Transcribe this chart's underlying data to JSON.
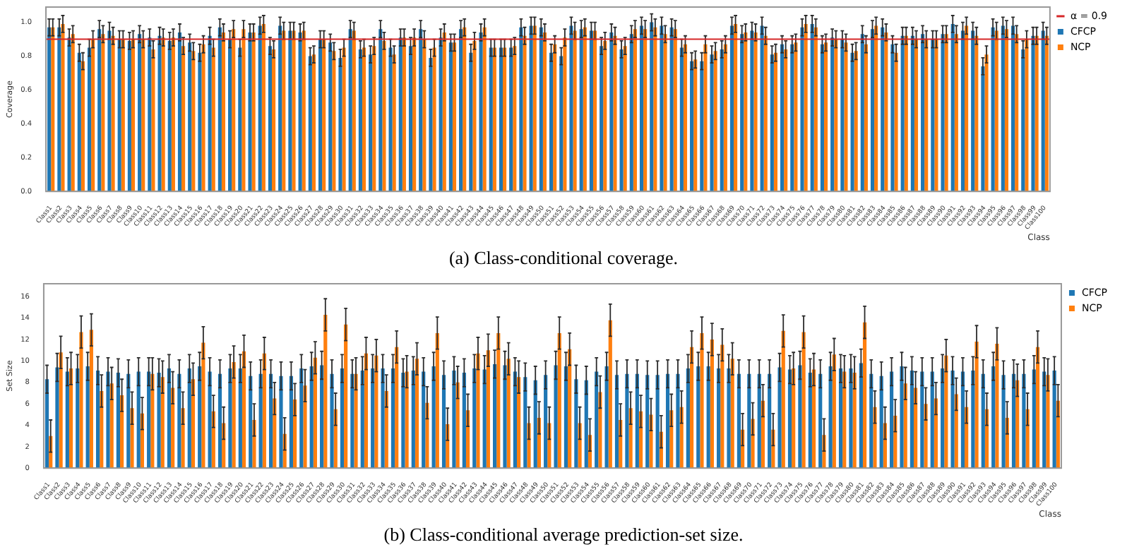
{
  "chart_data": [
    {
      "type": "bar",
      "xlabel": "Class",
      "ylabel": "Coverage",
      "legend": "top right",
      "grid": false,
      "categories": [
        "Class1",
        "Class2",
        "Class3",
        "Class4",
        "Class5",
        "Class6",
        "Class7",
        "Class8",
        "Class9",
        "Class10",
        "Class11",
        "Class12",
        "Class13",
        "Class14",
        "Class15",
        "Class16",
        "Class17",
        "Class18",
        "Class19",
        "Class20",
        "Class21",
        "Class22",
        "Class23",
        "Class24",
        "Class25",
        "Class26",
        "Class27",
        "Class28",
        "Class29",
        "Class30",
        "Class31",
        "Class32",
        "Class33",
        "Class34",
        "Class35",
        "Class36",
        "Class37",
        "Class38",
        "Class39",
        "Class40",
        "Class41",
        "Class42",
        "Class43",
        "Class44",
        "Class45",
        "Class46",
        "Class47",
        "Class48",
        "Class49",
        "Class50",
        "Class51",
        "Class52",
        "Class53",
        "Class54",
        "Class55",
        "Class56",
        "Class57",
        "Class58",
        "Class59",
        "Class60",
        "Class61",
        "Class62",
        "Class63",
        "Class64",
        "Class65",
        "Class66",
        "Class67",
        "Class68",
        "Class69",
        "Class70",
        "Class71",
        "Class72",
        "Class73",
        "Class74",
        "Class75",
        "Class76",
        "Class77",
        "Class78",
        "Class79",
        "Class80",
        "Class81",
        "Class82",
        "Class83",
        "Class84",
        "Class85",
        "Class86",
        "Class87",
        "Class88",
        "Class89",
        "Class90",
        "Class91",
        "Class92",
        "Class93",
        "Class94",
        "Class95",
        "Class96",
        "Class97",
        "Class98",
        "Class99",
        "Class100"
      ],
      "series": [
        {
          "name": "CFCP",
          "color": "#1f77b4",
          "values": [
            0.97,
            0.97,
            0.91,
            0.82,
            0.85,
            0.96,
            0.95,
            0.9,
            0.89,
            0.93,
            0.91,
            0.92,
            0.89,
            0.94,
            0.88,
            0.82,
            0.92,
            0.97,
            0.9,
            0.85,
            0.94,
            0.98,
            0.86,
            0.98,
            0.95,
            0.94,
            0.8,
            0.9,
            0.88,
            0.79,
            0.96,
            0.84,
            0.81,
            0.96,
            0.85,
            0.91,
            0.86,
            0.96,
            0.79,
            0.91,
            0.88,
            0.96,
            0.82,
            0.94,
            0.85,
            0.85,
            0.85,
            0.97,
            0.98,
            0.97,
            0.82,
            0.8,
            0.98,
            0.96,
            0.95,
            0.86,
            0.94,
            0.84,
            0.93,
            0.98,
            1.0,
            0.98,
            0.97,
            0.85,
            0.77,
            0.77,
            0.81,
            0.84,
            0.98,
            0.93,
            0.95,
            0.98,
            0.81,
            0.87,
            0.87,
            0.97,
            0.99,
            0.87,
            0.91,
            0.9,
            0.82,
            0.93,
            0.96,
            0.97,
            0.87,
            0.92,
            0.92,
            0.93,
            0.9,
            0.93,
            0.99,
            0.95,
            0.95,
            0.74,
            0.97,
            0.98,
            0.98,
            0.84,
            0.92,
            0.95
          ],
          "errors": [
            0.05,
            0.05,
            0.05,
            0.05,
            0.05,
            0.05,
            0.05,
            0.05,
            0.05,
            0.05,
            0.05,
            0.05,
            0.05,
            0.05,
            0.05,
            0.05,
            0.05,
            0.05,
            0.05,
            0.05,
            0.05,
            0.05,
            0.05,
            0.05,
            0.05,
            0.05,
            0.05,
            0.05,
            0.05,
            0.05,
            0.05,
            0.05,
            0.05,
            0.05,
            0.05,
            0.05,
            0.05,
            0.05,
            0.05,
            0.05,
            0.05,
            0.05,
            0.05,
            0.05,
            0.05,
            0.05,
            0.05,
            0.05,
            0.05,
            0.05,
            0.05,
            0.05,
            0.05,
            0.05,
            0.05,
            0.05,
            0.05,
            0.05,
            0.05,
            0.05,
            0.05,
            0.05,
            0.05,
            0.05,
            0.05,
            0.05,
            0.05,
            0.05,
            0.05,
            0.05,
            0.05,
            0.05,
            0.05,
            0.05,
            0.05,
            0.05,
            0.05,
            0.05,
            0.05,
            0.05,
            0.05,
            0.05,
            0.05,
            0.05,
            0.05,
            0.05,
            0.05,
            0.05,
            0.05,
            0.05,
            0.05,
            0.05,
            0.05,
            0.05,
            0.05,
            0.05,
            0.05,
            0.05,
            0.05,
            0.05
          ]
        },
        {
          "name": "NCP",
          "color": "#ff7f0e",
          "values": [
            0.97,
            0.99,
            0.93,
            0.77,
            0.9,
            0.93,
            0.92,
            0.9,
            0.9,
            0.9,
            0.84,
            0.91,
            0.91,
            0.86,
            0.83,
            0.87,
            0.85,
            0.94,
            0.96,
            0.96,
            0.94,
            0.99,
            0.84,
            0.95,
            0.95,
            0.95,
            0.81,
            0.9,
            0.83,
            0.85,
            0.95,
            0.85,
            0.86,
            0.89,
            0.81,
            0.91,
            0.91,
            0.9,
            0.85,
            0.94,
            0.88,
            0.97,
            0.89,
            0.97,
            0.85,
            0.85,
            0.86,
            0.92,
            0.98,
            0.94,
            0.87,
            0.91,
            0.95,
            0.97,
            0.95,
            0.89,
            0.92,
            0.86,
            0.96,
            0.96,
            0.97,
            0.93,
            0.96,
            0.87,
            0.78,
            0.87,
            0.83,
            0.87,
            0.99,
            0.94,
            0.94,
            0.92,
            0.82,
            0.84,
            0.88,
            0.99,
            0.97,
            0.88,
            0.9,
            0.88,
            0.83,
            0.87,
            0.98,
            0.94,
            0.82,
            0.92,
            0.9,
            0.9,
            0.9,
            0.93,
            0.93,
            0.98,
            0.92,
            0.81,
            0.95,
            0.96,
            0.93,
            0.9,
            0.92,
            0.92
          ],
          "errors": [
            0.05,
            0.05,
            0.05,
            0.05,
            0.05,
            0.05,
            0.05,
            0.05,
            0.05,
            0.05,
            0.05,
            0.05,
            0.05,
            0.05,
            0.05,
            0.05,
            0.05,
            0.05,
            0.05,
            0.05,
            0.05,
            0.05,
            0.05,
            0.05,
            0.05,
            0.05,
            0.05,
            0.05,
            0.05,
            0.05,
            0.05,
            0.05,
            0.05,
            0.05,
            0.05,
            0.05,
            0.05,
            0.05,
            0.05,
            0.05,
            0.05,
            0.05,
            0.05,
            0.05,
            0.05,
            0.05,
            0.05,
            0.05,
            0.05,
            0.05,
            0.05,
            0.05,
            0.05,
            0.05,
            0.05,
            0.05,
            0.05,
            0.05,
            0.05,
            0.05,
            0.05,
            0.05,
            0.05,
            0.05,
            0.05,
            0.05,
            0.05,
            0.05,
            0.05,
            0.05,
            0.05,
            0.05,
            0.05,
            0.05,
            0.05,
            0.05,
            0.05,
            0.05,
            0.05,
            0.05,
            0.05,
            0.05,
            0.05,
            0.05,
            0.05,
            0.05,
            0.05,
            0.05,
            0.05,
            0.05,
            0.05,
            0.05,
            0.05,
            0.05,
            0.05,
            0.05,
            0.05,
            0.05,
            0.05,
            0.05
          ]
        }
      ],
      "ylim": [
        0,
        1.09
      ],
      "yticks": [
        {
          "value": 0,
          "label": "0.0"
        },
        {
          "value": 0.2,
          "label": "0.2"
        },
        {
          "value": 0.4,
          "label": "0.4"
        },
        {
          "value": 0.6,
          "label": "0.6"
        },
        {
          "value": 0.8,
          "label": "0.8"
        },
        {
          "value": 1,
          "label": "1.0"
        }
      ],
      "ref_lines": [
        {
          "axis": "y",
          "value": 0.9,
          "label": "α = 0.9",
          "color": "#d62728"
        }
      ],
      "annotations": [
        "(a) Class-conditional coverage."
      ]
    },
    {
      "type": "bar",
      "xlabel": "Class",
      "ylabel": "Set Size",
      "legend": "top right",
      "grid": false,
      "categories": [
        "Class1",
        "Class2",
        "Class3",
        "Class4",
        "Class5",
        "Class6",
        "Class7",
        "Class8",
        "Class9",
        "Class10",
        "Class11",
        "Class12",
        "Class13",
        "Class14",
        "Class15",
        "Class16",
        "Class17",
        "Class18",
        "Class19",
        "Class20",
        "Class21",
        "Class22",
        "Class23",
        "Class24",
        "Class25",
        "Class26",
        "Class27",
        "Class28",
        "Class29",
        "Class30",
        "Class31",
        "Class32",
        "Class33",
        "Class34",
        "Class35",
        "Class36",
        "Class37",
        "Class38",
        "Class39",
        "Class40",
        "Class41",
        "Class42",
        "Class43",
        "Class44",
        "Class45",
        "Class46",
        "Class47",
        "Class48",
        "Class49",
        "Class50",
        "Class51",
        "Class52",
        "Class53",
        "Class54",
        "Class55",
        "Class56",
        "Class57",
        "Class58",
        "Class59",
        "Class60",
        "Class61",
        "Class62",
        "Class63",
        "Class64",
        "Class65",
        "Class66",
        "Class67",
        "Class68",
        "Class69",
        "Class70",
        "Class71",
        "Class72",
        "Class73",
        "Class74",
        "Class75",
        "Class76",
        "Class77",
        "Class78",
        "Class79",
        "Class80",
        "Class81",
        "Class82",
        "Class83",
        "Class84",
        "Class85",
        "Class86",
        "Class87",
        "Class88",
        "Class89",
        "Class90",
        "Class91",
        "Class92",
        "Class93",
        "Class94",
        "Class95",
        "Class96",
        "Class97",
        "Class98",
        "Class99",
        "Class100"
      ],
      "series": [
        {
          "name": "CFCP",
          "color": "#1f77b4",
          "values": [
            8.3,
            9.4,
            9.0,
            9.3,
            9.5,
            9.1,
            9.0,
            8.9,
            8.8,
            9.0,
            9.0,
            8.9,
            9.3,
            8.8,
            9.3,
            9.5,
            9.0,
            8.8,
            9.3,
            9.3,
            8.6,
            8.8,
            8.8,
            8.6,
            8.6,
            9.3,
            9.5,
            9.6,
            8.8,
            9.3,
            8.8,
            9.1,
            9.3,
            9.3,
            9.3,
            8.9,
            9.1,
            9.0,
            9.5,
            8.7,
            9.1,
            8.9,
            9.3,
            9.2,
            9.7,
            9.6,
            9.0,
            8.5,
            8.2,
            8.7,
            9.6,
            9.5,
            8.3,
            8.2,
            9.0,
            9.5,
            8.7,
            8.8,
            8.8,
            8.7,
            8.7,
            8.8,
            8.8,
            9.3,
            9.5,
            9.5,
            9.3,
            9.3,
            8.8,
            8.8,
            8.8,
            8.8,
            9.4,
            9.2,
            9.6,
            8.9,
            8.8,
            9.5,
            9.3,
            9.3,
            9.8,
            8.8,
            8.6,
            9.0,
            9.5,
            9.1,
            9.0,
            9.0,
            9.3,
            9.1,
            9.0,
            9.1,
            8.8,
            9.5,
            8.7,
            8.8,
            8.8,
            9.2,
            9.0,
            9.1
          ],
          "errors": [
            1.3,
            1.3,
            1.3,
            1.3,
            1.3,
            1.3,
            1.3,
            1.3,
            1.3,
            1.3,
            1.3,
            1.3,
            1.3,
            1.3,
            1.3,
            1.3,
            1.3,
            1.3,
            1.3,
            1.3,
            1.3,
            1.3,
            1.3,
            1.3,
            1.3,
            1.3,
            1.3,
            1.3,
            1.3,
            1.3,
            1.3,
            1.3,
            1.3,
            1.3,
            1.3,
            1.3,
            1.3,
            1.3,
            1.3,
            1.3,
            1.3,
            1.3,
            1.3,
            1.3,
            1.3,
            1.3,
            1.3,
            1.3,
            1.3,
            1.3,
            1.3,
            1.3,
            1.3,
            1.3,
            1.3,
            1.3,
            1.3,
            1.3,
            1.3,
            1.3,
            1.3,
            1.3,
            1.3,
            1.3,
            1.3,
            1.3,
            1.3,
            1.3,
            1.3,
            1.3,
            1.3,
            1.3,
            1.3,
            1.3,
            1.3,
            1.3,
            1.3,
            1.3,
            1.3,
            1.3,
            1.3,
            1.3,
            1.3,
            1.3,
            1.3,
            1.3,
            1.3,
            1.3,
            1.3,
            1.3,
            1.3,
            1.3,
            1.3,
            1.3,
            1.3,
            1.3,
            1.3,
            1.3,
            1.3,
            1.3
          ]
        },
        {
          "name": "NCP",
          "color": "#ff7f0e",
          "values": [
            3.0,
            10.8,
            9.3,
            12.7,
            12.9,
            7.2,
            7.9,
            6.8,
            5.6,
            5.1,
            8.8,
            8.5,
            7.5,
            5.6,
            8.3,
            11.7,
            5.3,
            4.2,
            9.9,
            10.9,
            4.5,
            10.7,
            6.5,
            3.2,
            6.4,
            7.7,
            10.3,
            14.3,
            5.5,
            13.4,
            8.8,
            10.7,
            10.5,
            7.2,
            11.3,
            9.0,
            10.2,
            6.1,
            12.6,
            4.1,
            8.0,
            5.4,
            10.7,
            11.0,
            12.6,
            10.2,
            8.5,
            4.2,
            4.7,
            4.2,
            12.6,
            11.1,
            4.2,
            3.1,
            7.1,
            13.8,
            4.5,
            5.6,
            5.3,
            5.0,
            3.4,
            5.4,
            5.7,
            11.3,
            12.6,
            12.0,
            11.5,
            10.2,
            3.6,
            4.6,
            6.3,
            3.6,
            12.8,
            9.3,
            12.7,
            9.2,
            3.1,
            10.6,
            9.0,
            8.9,
            13.6,
            5.7,
            4.2,
            4.9,
            7.9,
            7.5,
            6.0,
            6.5,
            10.5,
            6.9,
            5.7,
            11.8,
            5.5,
            11.6,
            4.7,
            8.2,
            5.5,
            11.3,
            8.7,
            6.3
          ],
          "errors": [
            1.5,
            1.5,
            1.5,
            1.5,
            1.5,
            1.5,
            1.5,
            1.5,
            1.5,
            1.5,
            1.5,
            1.5,
            1.5,
            1.5,
            1.5,
            1.5,
            1.5,
            1.5,
            1.5,
            1.5,
            1.5,
            1.5,
            1.5,
            1.5,
            1.5,
            1.5,
            1.5,
            1.5,
            1.5,
            1.5,
            1.5,
            1.5,
            1.5,
            1.5,
            1.5,
            1.5,
            1.5,
            1.5,
            1.5,
            1.5,
            1.5,
            1.5,
            1.5,
            1.5,
            1.5,
            1.5,
            1.5,
            1.5,
            1.5,
            1.5,
            1.5,
            1.5,
            1.5,
            1.5,
            1.5,
            1.5,
            1.5,
            1.5,
            1.5,
            1.5,
            1.5,
            1.5,
            1.5,
            1.5,
            1.5,
            1.5,
            1.5,
            1.5,
            1.5,
            1.5,
            1.5,
            1.5,
            1.5,
            1.5,
            1.5,
            1.5,
            1.5,
            1.5,
            1.5,
            1.5,
            1.5,
            1.5,
            1.5,
            1.5,
            1.5,
            1.5,
            1.5,
            1.5,
            1.5,
            1.5,
            1.5,
            1.5,
            1.5,
            1.5,
            1.5,
            1.5,
            1.5,
            1.5,
            1.5,
            1.5
          ]
        }
      ],
      "ylim": [
        0,
        17.2
      ],
      "yticks": [
        0,
        2,
        4,
        6,
        8,
        10,
        12,
        14,
        16
      ],
      "annotations": [
        "(b) Class-conditional average prediction-set size."
      ]
    }
  ]
}
